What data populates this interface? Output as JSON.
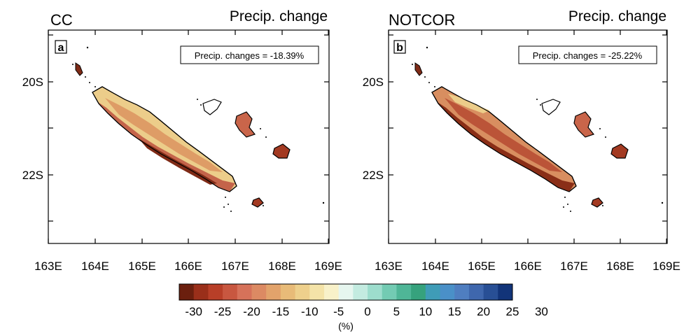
{
  "panels": [
    {
      "id": "a",
      "left_title": "CC",
      "right_title": "Precip. change",
      "letter": "a",
      "box_text": "Precip. changes = -18.39%"
    },
    {
      "id": "b",
      "left_title": "NOTCOR",
      "right_title": "Precip. change",
      "letter": "b",
      "box_text": "Precip. changes = -25.22%"
    }
  ],
  "axes": {
    "lon_ticks": [
      "163E",
      "164E",
      "165E",
      "166E",
      "167E",
      "168E",
      "169E"
    ],
    "lat_ticks": [
      "20S",
      "22S"
    ]
  },
  "colorbar": {
    "tick_labels": [
      "-30",
      "-25",
      "-20",
      "-15",
      "-10",
      "-5",
      "0",
      "5",
      "10",
      "15",
      "20",
      "25",
      "30"
    ],
    "unit": "(%)",
    "colors": [
      "#6b1f0e",
      "#9a2f1a",
      "#b83f28",
      "#c85740",
      "#d6725a",
      "#dc8a63",
      "#e2a36b",
      "#e8bb78",
      "#eed08c",
      "#f4e3a8",
      "#f8f1c9",
      "#e6f6ef",
      "#c3ebe0",
      "#9dddcd",
      "#73cbb3",
      "#4fb697",
      "#36a27d",
      "#3f9cb7",
      "#4a90c8",
      "#4f7ec0",
      "#3f67ad",
      "#284f95",
      "#123479"
    ]
  }
}
